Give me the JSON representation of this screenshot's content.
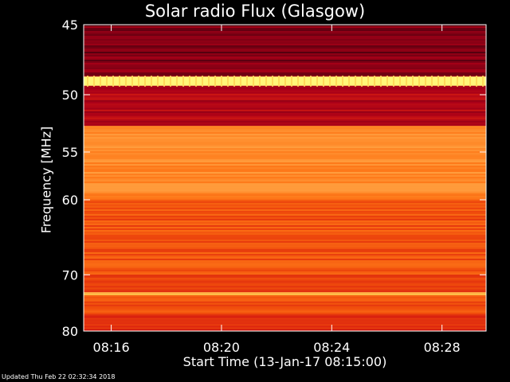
{
  "chart_data": {
    "type": "heatmap",
    "title": "Solar radio Flux (Glasgow)",
    "xlabel": "Start Time (13-Jan-17 08:15:00)",
    "ylabel": "Frequency [MHz]",
    "x_tick_labels": [
      "08:16",
      "08:20",
      "08:24",
      "08:28"
    ],
    "x_ticks_minutes_after_start": [
      1,
      5,
      9,
      13
    ],
    "xlim_minutes_after_start": [
      0,
      14.6
    ],
    "y_tick_labels": [
      "45",
      "50",
      "55",
      "60",
      "70",
      "80"
    ],
    "y_ticks": [
      45,
      50,
      55,
      60,
      70,
      80
    ],
    "ylim": [
      45,
      80
    ],
    "y_scale": "reciprocal",
    "colormap": [
      "#000000",
      "#5a0010",
      "#aa0018",
      "#d81e10",
      "#f04c0c",
      "#fe7818",
      "#ffa040",
      "#ffd050",
      "#ffff80"
    ],
    "band_levels": [
      {
        "freq_range": [
          45,
          48.6
        ],
        "level": 0.18
      },
      {
        "freq_range": [
          48.6,
          49.3
        ],
        "level": 0.98
      },
      {
        "freq_range": [
          49.3,
          52.6
        ],
        "level": 0.28
      },
      {
        "freq_range": [
          52.6,
          60
        ],
        "level": 0.68
      },
      {
        "freq_range": [
          60,
          70
        ],
        "level": 0.52
      },
      {
        "freq_range": [
          70,
          72.8
        ],
        "level": 0.46
      },
      {
        "freq_range": [
          72.8,
          73.3
        ],
        "level": 0.8
      },
      {
        "freq_range": [
          73.3,
          76.8
        ],
        "level": 0.5
      },
      {
        "freq_range": [
          76.8,
          80
        ],
        "level": 0.42
      }
    ],
    "grid": false,
    "legend": "none"
  },
  "footer": {
    "updated": "Updated Thu Feb 22 02:32:34 2018"
  }
}
